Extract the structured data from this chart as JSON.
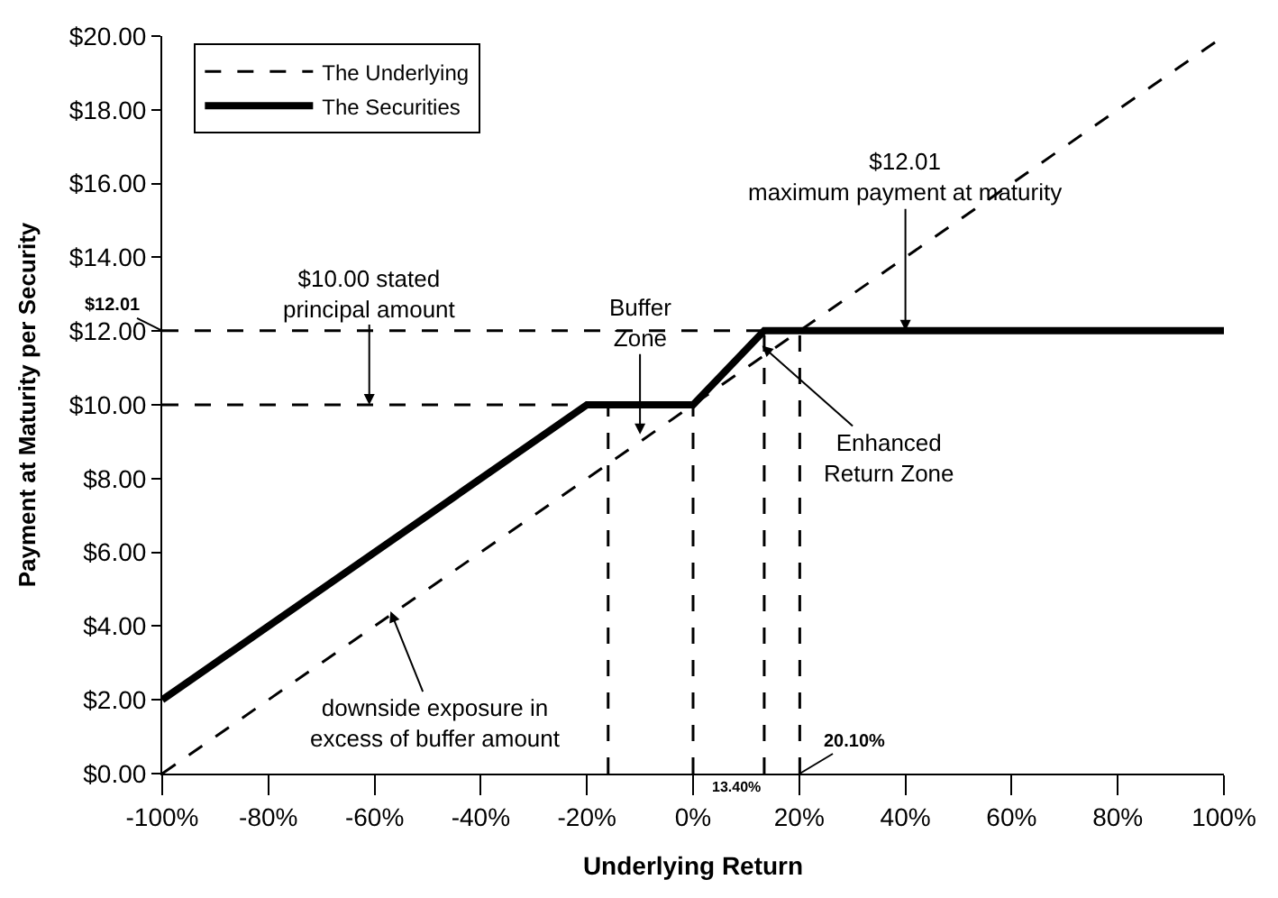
{
  "chart_data": {
    "type": "line",
    "xlabel": "Underlying Return",
    "ylabel": "Payment at Maturity per Security",
    "xlim": [
      -100,
      100
    ],
    "xticks": [
      {
        "value": -100,
        "label": "-100%"
      },
      {
        "value": -80,
        "label": "-80%"
      },
      {
        "value": -60,
        "label": "-60%"
      },
      {
        "value": -40,
        "label": "-40%"
      },
      {
        "value": -20,
        "label": "-20%"
      },
      {
        "value": 0,
        "label": "0%"
      },
      {
        "value": 20,
        "label": "20%"
      },
      {
        "value": 40,
        "label": "40%"
      },
      {
        "value": 60,
        "label": "60%"
      },
      {
        "value": 80,
        "label": "80%"
      },
      {
        "value": 100,
        "label": "100%"
      }
    ],
    "ylim": [
      0,
      20
    ],
    "yticks": [
      {
        "value": 0,
        "label": "$0.00"
      },
      {
        "value": 2,
        "label": "$2.00"
      },
      {
        "value": 4,
        "label": "$4.00"
      },
      {
        "value": 6,
        "label": "$6.00"
      },
      {
        "value": 8,
        "label": "$8.00"
      },
      {
        "value": 10,
        "label": "$10.00"
      },
      {
        "value": 12,
        "label": "$12.00"
      },
      {
        "value": 14,
        "label": "$14.00"
      },
      {
        "value": 16,
        "label": "$16.00"
      },
      {
        "value": 18,
        "label": "$18.00"
      },
      {
        "value": 20,
        "label": "$20.00"
      }
    ],
    "legend": "top left",
    "marker": "none",
    "series": [
      {
        "name": "The Underlying",
        "color": "#000000",
        "line_style": "dashed",
        "x": [
          -100,
          100
        ],
        "values": [
          0,
          20
        ]
      },
      {
        "name": "The Securities",
        "color": "#000000",
        "line_style": "solid",
        "x": [
          -100,
          -20,
          0,
          13.4,
          100
        ],
        "values": [
          2,
          10,
          10,
          12.01,
          12.01
        ]
      },
      {
        "color": "#000000",
        "line_style": "dashed",
        "x": [
          -100,
          13.4
        ],
        "values": [
          12.01,
          12.01
        ]
      },
      {
        "color": "#000000",
        "line_style": "dashed",
        "x": [
          -100,
          -20
        ],
        "values": [
          10,
          10
        ]
      },
      {
        "color": "#000000",
        "line_style": "dashed",
        "x": [
          -16,
          -16
        ],
        "values": [
          0,
          10
        ]
      },
      {
        "color": "#000000",
        "line_style": "dashed",
        "x": [
          0,
          0
        ],
        "values": [
          0,
          10
        ]
      },
      {
        "color": "#000000",
        "line_style": "dashed",
        "x": [
          13.4,
          13.4
        ],
        "values": [
          0,
          12.01
        ]
      },
      {
        "color": "#000000",
        "line_style": "dashed",
        "x": [
          20.1,
          20.1
        ],
        "values": [
          0,
          12.01
        ]
      }
    ],
    "annotations": [
      {
        "text": "$10.00 stated\nprincipal amount",
        "x": -61,
        "y": 10
      },
      {
        "text": "Buffer\nZone",
        "x": -10,
        "y": 9.2
      },
      {
        "text": "$12.01\nmaximum payment at maturity",
        "x": 40,
        "y": 12.01
      },
      {
        "text": "Enhanced\nReturn Zone",
        "x": 13,
        "y": 11.6
      },
      {
        "text": "downside exposure in\nexcess of buffer amount",
        "x": -57,
        "y": 4.4
      },
      {
        "text": "$12.01",
        "x": -100,
        "y": 12.01
      },
      {
        "text": "13.40%",
        "x": 13.4,
        "y": 0
      },
      {
        "text": "20.10%",
        "x": 20.1,
        "y": 0
      }
    ]
  }
}
